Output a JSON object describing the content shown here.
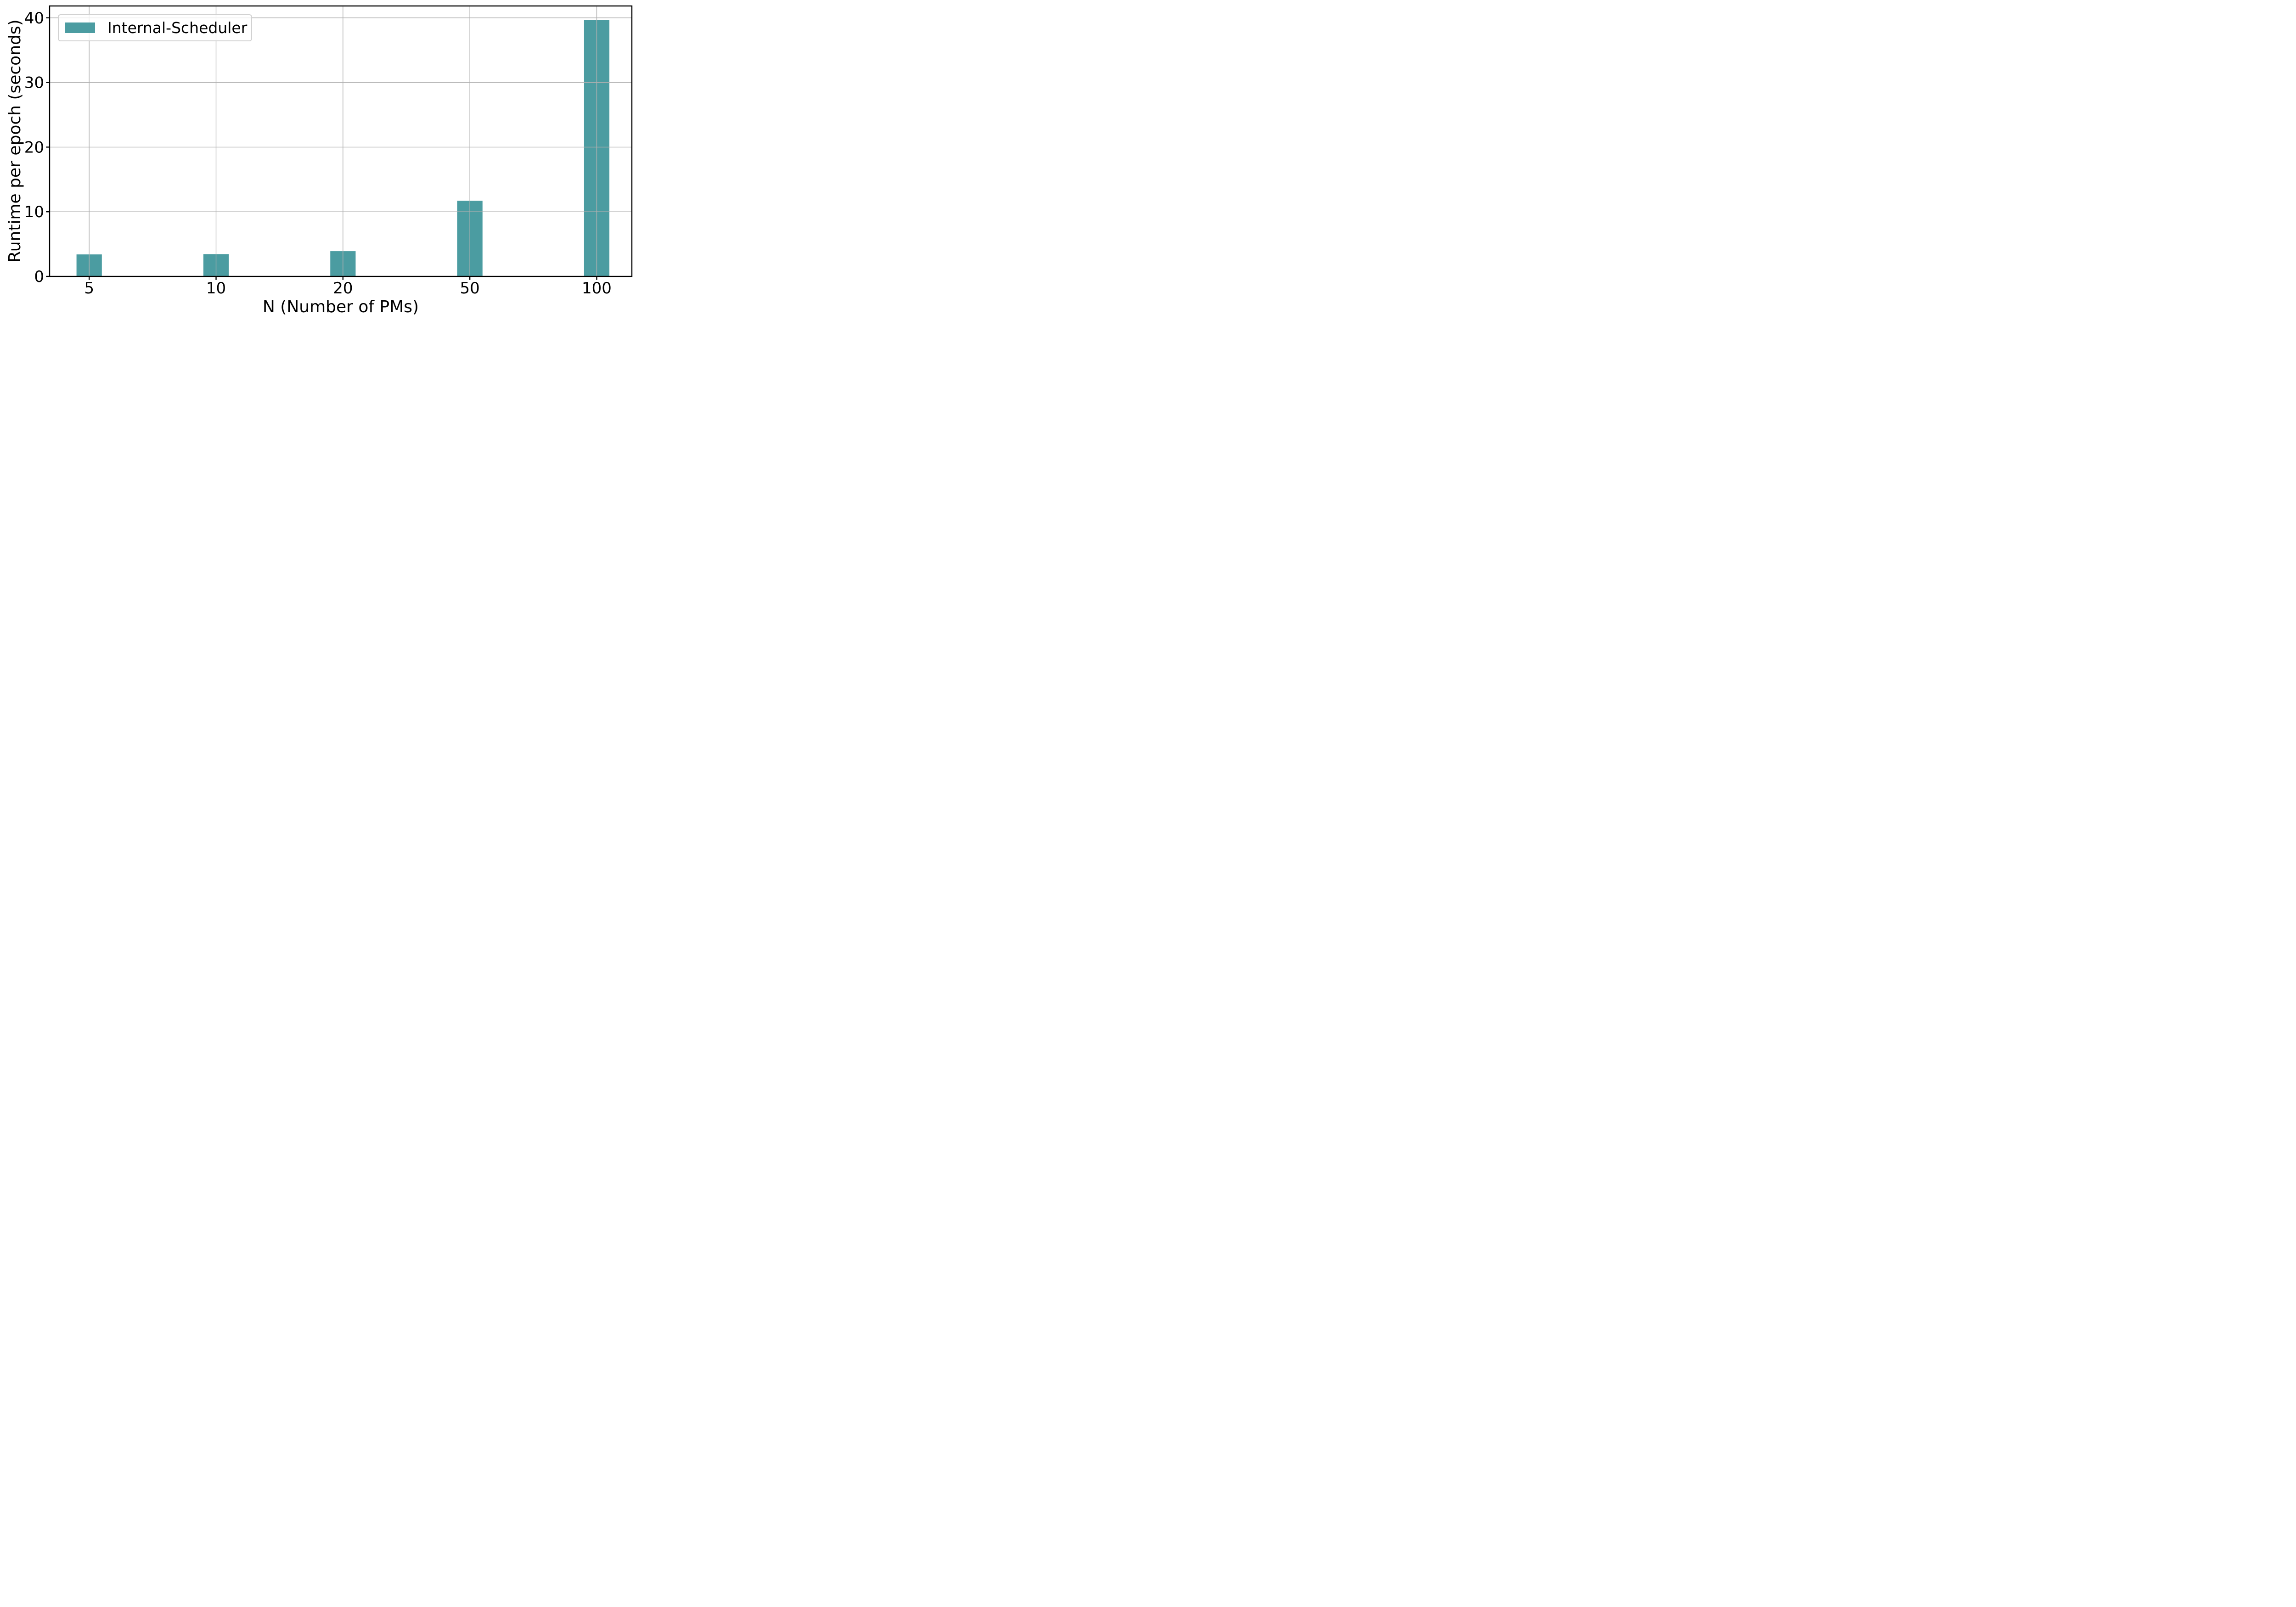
{
  "chart_data": {
    "type": "bar",
    "title": "",
    "categories": [
      "5",
      "10",
      "20",
      "50",
      "100"
    ],
    "series": [
      {
        "name": "Internal-Scheduler",
        "values": [
          3.4,
          3.45,
          3.9,
          11.7,
          39.7
        ]
      }
    ],
    "xlabel": "N (Number of PMs)",
    "ylabel": "Runtime per epoch (seconds)",
    "yticks": [
      0,
      10,
      20,
      30,
      40
    ],
    "ylim": [
      0,
      41.8
    ],
    "grid": true,
    "grid_on_top_of_bars": true,
    "legend_position": "upper-left",
    "colors": {
      "bar": "#4B9CA1",
      "grid": "#b0b0b0",
      "spine": "#000000",
      "legend_border": "#d2d2d2",
      "text": "#000000",
      "background": "#ffffff"
    }
  }
}
